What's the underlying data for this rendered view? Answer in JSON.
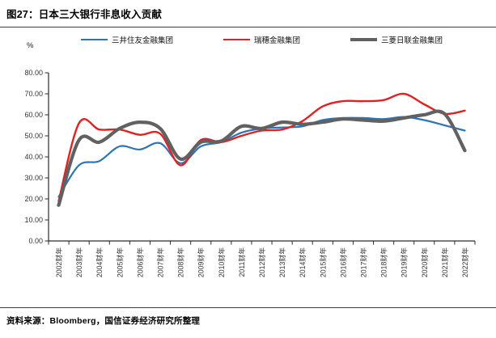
{
  "header": {
    "title": "图27：日本三大银行非息收入贡献"
  },
  "footer": {
    "source": "资料来源：Bloomberg，国信证券经济研究所整理"
  },
  "chart_data": {
    "type": "line",
    "title": "日本三大银行非息收入贡献",
    "unit": "%",
    "smooth": true,
    "grid": false,
    "legend_position": "top",
    "ylim": [
      0,
      80
    ],
    "ytick_step": 10,
    "ytick_decimals": 2,
    "categories": [
      "2002财年",
      "2003财年",
      "2004财年",
      "2005财年",
      "2006财年",
      "2007财年",
      "2008财年",
      "2009财年",
      "2010财年",
      "2011财年",
      "2012财年",
      "2013财年",
      "2014财年",
      "2015财年",
      "2016财年",
      "2017财年",
      "2018财年",
      "2019财年",
      "2020财年",
      "2021财年",
      "2022财年"
    ],
    "series": [
      {
        "name": "三井住友金融集团",
        "color": "#2E75B6",
        "line_width": 2.2,
        "values": [
          21,
          36,
          38,
          45,
          43.5,
          46.5,
          37,
          45,
          47,
          51.5,
          53.5,
          54,
          54.5,
          57.5,
          58.5,
          58.5,
          58,
          59,
          57.5,
          55,
          52.5
        ]
      },
      {
        "name": "瑞穗金融集团",
        "color": "#E02222",
        "line_width": 2.4,
        "values": [
          19,
          56,
          53,
          53,
          50.5,
          51,
          36,
          48,
          47,
          50,
          52.5,
          53,
          57,
          64,
          66.5,
          66.5,
          67,
          70,
          65,
          60.5,
          62
        ]
      },
      {
        "name": "三菱日联金融集团",
        "color": "#616161",
        "line_width": 4.2,
        "values": [
          17,
          48,
          47,
          53.5,
          56.5,
          53.5,
          39,
          47,
          47.5,
          54.5,
          53.5,
          56.5,
          55.5,
          56.5,
          58,
          57.5,
          57,
          58.5,
          60,
          60.5,
          43
        ]
      }
    ]
  }
}
